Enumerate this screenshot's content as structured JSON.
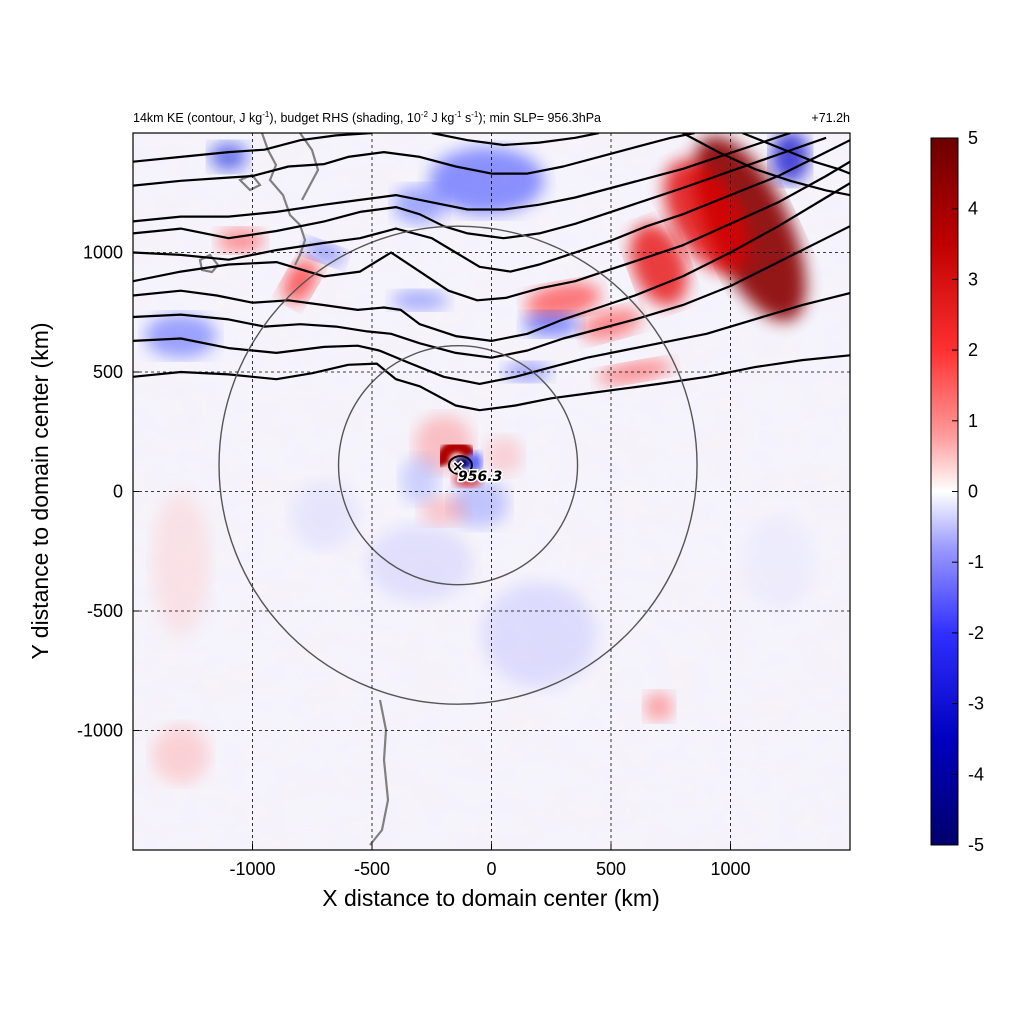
{
  "title": {
    "main": "14km KE (contour, J kg",
    "sup1": "-1",
    "part2": "), budget RHS (shading, 10",
    "sup2": "-2",
    "part3": " J kg",
    "sup3": "-1",
    "part4": " s",
    "sup4": "-1",
    "part5": "); min SLP= 956.3hPa",
    "time": "+71.2h"
  },
  "axes": {
    "xlabel": "X distance to domain center (km)",
    "ylabel": "Y distance to domain center (km)"
  },
  "center_marker": {
    "symbol": "×",
    "label": "956.3"
  },
  "colors": {
    "max": "#6b0000",
    "strong_red": "#e60000",
    "light_red": "#ffb0b0",
    "zero": "#ffffff",
    "light_blue": "#b0b0ff",
    "strong_blue": "#0000e6",
    "min": "#00006b",
    "contour": "#000000",
    "coast": "#808080",
    "circle": "#555555"
  },
  "chart_data": {
    "type": "heatmap",
    "xlim": [
      -1500,
      1500
    ],
    "ylim": [
      -1500,
      1500
    ],
    "xticks": [
      -1000,
      -500,
      0,
      500,
      1000
    ],
    "yticks": [
      -1000,
      -500,
      0,
      500,
      1000
    ],
    "xtick_labels": [
      "-1000",
      "-500",
      "0",
      "500",
      "1000"
    ],
    "ytick_labels": [
      "-1000",
      "-500",
      "0",
      "500",
      "1000"
    ],
    "grid": true,
    "colorbar": {
      "range": [
        -5,
        5
      ],
      "ticks": [
        5,
        4,
        3,
        2,
        1,
        0,
        -1,
        -2,
        -3,
        -4,
        -5
      ],
      "tick_labels": [
        "5",
        "4",
        "3",
        "2",
        "1",
        "0",
        "-1",
        "-2",
        "-3",
        "-4",
        "-5"
      ]
    },
    "storm_center": {
      "x": -140,
      "y": 110,
      "min_slp": 956.3
    },
    "range_rings_km": [
      {
        "cx": -140,
        "cy": 110,
        "r": 500
      },
      {
        "cx": -140,
        "cy": 110,
        "r": 1000
      }
    ],
    "ke_contours": [
      [
        [
          -1500,
          480
        ],
        [
          -1300,
          500
        ],
        [
          -1100,
          490
        ],
        [
          -900,
          470
        ],
        [
          -750,
          495
        ],
        [
          -600,
          530
        ],
        [
          -480,
          535
        ],
        [
          -400,
          470
        ],
        [
          -300,
          440
        ],
        [
          -150,
          360
        ],
        [
          -50,
          340
        ],
        [
          100,
          360
        ],
        [
          250,
          390
        ],
        [
          400,
          410
        ],
        [
          550,
          430
        ],
        [
          700,
          450
        ],
        [
          900,
          480
        ],
        [
          1100,
          520
        ],
        [
          1300,
          550
        ],
        [
          1500,
          570
        ]
      ],
      [
        [
          -1500,
          630
        ],
        [
          -1300,
          640
        ],
        [
          -1100,
          600
        ],
        [
          -900,
          580
        ],
        [
          -700,
          605
        ],
        [
          -560,
          610
        ],
        [
          -470,
          590
        ],
        [
          -350,
          540
        ],
        [
          -200,
          480
        ],
        [
          -50,
          450
        ],
        [
          100,
          480
        ],
        [
          250,
          520
        ],
        [
          400,
          560
        ],
        [
          550,
          590
        ],
        [
          700,
          620
        ],
        [
          900,
          660
        ],
        [
          1100,
          720
        ],
        [
          1300,
          780
        ],
        [
          1500,
          830
        ]
      ],
      [
        [
          -1500,
          730
        ],
        [
          -1300,
          740
        ],
        [
          -1100,
          720
        ],
        [
          -950,
          690
        ],
        [
          -800,
          700
        ],
        [
          -650,
          690
        ],
        [
          -520,
          670
        ],
        [
          -420,
          660
        ],
        [
          -300,
          620
        ],
        [
          -150,
          580
        ],
        [
          0,
          560
        ],
        [
          150,
          590
        ],
        [
          300,
          640
        ],
        [
          450,
          680
        ],
        [
          600,
          720
        ],
        [
          800,
          780
        ],
        [
          1000,
          860
        ],
        [
          1200,
          960
        ],
        [
          1400,
          1060
        ],
        [
          1500,
          1110
        ]
      ],
      [
        [
          -1500,
          820
        ],
        [
          -1300,
          840
        ],
        [
          -1150,
          820
        ],
        [
          -1000,
          790
        ],
        [
          -850,
          800
        ],
        [
          -700,
          780
        ],
        [
          -560,
          760
        ],
        [
          -450,
          770
        ],
        [
          -380,
          760
        ],
        [
          -300,
          700
        ],
        [
          -150,
          650
        ],
        [
          0,
          630
        ],
        [
          150,
          660
        ],
        [
          300,
          720
        ],
        [
          450,
          770
        ],
        [
          600,
          820
        ],
        [
          800,
          900
        ],
        [
          1000,
          1000
        ],
        [
          1200,
          1110
        ],
        [
          1400,
          1230
        ],
        [
          1500,
          1290
        ]
      ],
      [
        [
          -1500,
          880
        ],
        [
          -1300,
          920
        ],
        [
          -1100,
          950
        ],
        [
          -900,
          960
        ],
        [
          -700,
          900
        ],
        [
          -550,
          920
        ],
        [
          -420,
          1000
        ],
        [
          -300,
          920
        ],
        [
          -180,
          840
        ],
        [
          -60,
          800
        ],
        [
          60,
          810
        ],
        [
          200,
          850
        ],
        [
          350,
          880
        ],
        [
          500,
          930
        ],
        [
          650,
          980
        ],
        [
          800,
          1030
        ],
        [
          1000,
          1120
        ],
        [
          1200,
          1210
        ],
        [
          1400,
          1320
        ],
        [
          1500,
          1380
        ]
      ],
      [
        [
          -1500,
          1000
        ],
        [
          -1300,
          990
        ],
        [
          -1100,
          970
        ],
        [
          -900,
          1010
        ],
        [
          -700,
          1040
        ],
        [
          -550,
          1060
        ],
        [
          -400,
          1100
        ],
        [
          -250,
          1060
        ],
        [
          -150,
          1000
        ],
        [
          -50,
          940
        ],
        [
          80,
          920
        ],
        [
          200,
          950
        ],
        [
          350,
          1000
        ],
        [
          500,
          1050
        ],
        [
          650,
          1110
        ],
        [
          800,
          1160
        ],
        [
          1000,
          1240
        ],
        [
          1200,
          1320
        ],
        [
          1400,
          1420
        ],
        [
          1500,
          1470
        ]
      ],
      [
        [
          -1500,
          1080
        ],
        [
          -1300,
          1100
        ],
        [
          -1100,
          1060
        ],
        [
          -900,
          1090
        ],
        [
          -700,
          1130
        ],
        [
          -550,
          1170
        ],
        [
          -400,
          1190
        ],
        [
          -300,
          1160
        ],
        [
          -200,
          1110
        ],
        [
          -100,
          1080
        ],
        [
          50,
          1060
        ],
        [
          200,
          1080
        ],
        [
          350,
          1120
        ],
        [
          500,
          1170
        ],
        [
          650,
          1220
        ],
        [
          800,
          1270
        ],
        [
          1000,
          1340
        ],
        [
          1200,
          1410
        ],
        [
          1400,
          1480
        ]
      ],
      [
        [
          -1500,
          1130
        ],
        [
          -1300,
          1150
        ],
        [
          -1100,
          1150
        ],
        [
          -900,
          1170
        ],
        [
          -700,
          1200
        ],
        [
          -550,
          1220
        ],
        [
          -400,
          1240
        ],
        [
          -250,
          1210
        ],
        [
          -100,
          1180
        ],
        [
          50,
          1180
        ],
        [
          200,
          1200
        ],
        [
          350,
          1230
        ],
        [
          500,
          1270
        ],
        [
          650,
          1310
        ],
        [
          800,
          1350
        ],
        [
          950,
          1400
        ],
        [
          1100,
          1450
        ],
        [
          1250,
          1500
        ]
      ],
      [
        [
          -1500,
          1280
        ],
        [
          -1300,
          1300
        ],
        [
          -1150,
          1310
        ],
        [
          -1000,
          1320
        ],
        [
          -850,
          1360
        ],
        [
          -700,
          1370
        ],
        [
          -600,
          1400
        ],
        [
          -450,
          1420
        ],
        [
          -300,
          1400
        ],
        [
          -150,
          1360
        ],
        [
          0,
          1330
        ],
        [
          150,
          1330
        ],
        [
          300,
          1360
        ],
        [
          450,
          1400
        ],
        [
          600,
          1440
        ],
        [
          750,
          1480
        ],
        [
          850,
          1500
        ]
      ],
      [
        [
          -1500,
          1380
        ],
        [
          -1300,
          1400
        ],
        [
          -1100,
          1420
        ],
        [
          -950,
          1430
        ],
        [
          -800,
          1470
        ],
        [
          -650,
          1490
        ],
        [
          -500,
          1500
        ]
      ],
      [
        [
          -250,
          1500
        ],
        [
          -100,
          1470
        ],
        [
          50,
          1450
        ],
        [
          200,
          1460
        ],
        [
          350,
          1480
        ],
        [
          450,
          1500
        ]
      ],
      [
        [
          1050,
          1500
        ],
        [
          1150,
          1460
        ],
        [
          1250,
          1420
        ],
        [
          1350,
          1380
        ],
        [
          1450,
          1350
        ],
        [
          1500,
          1330
        ]
      ],
      [
        [
          800,
          1500
        ],
        [
          950,
          1420
        ],
        [
          1100,
          1350
        ],
        [
          1250,
          1300
        ],
        [
          1400,
          1260
        ],
        [
          1500,
          1240
        ]
      ]
    ]
  }
}
